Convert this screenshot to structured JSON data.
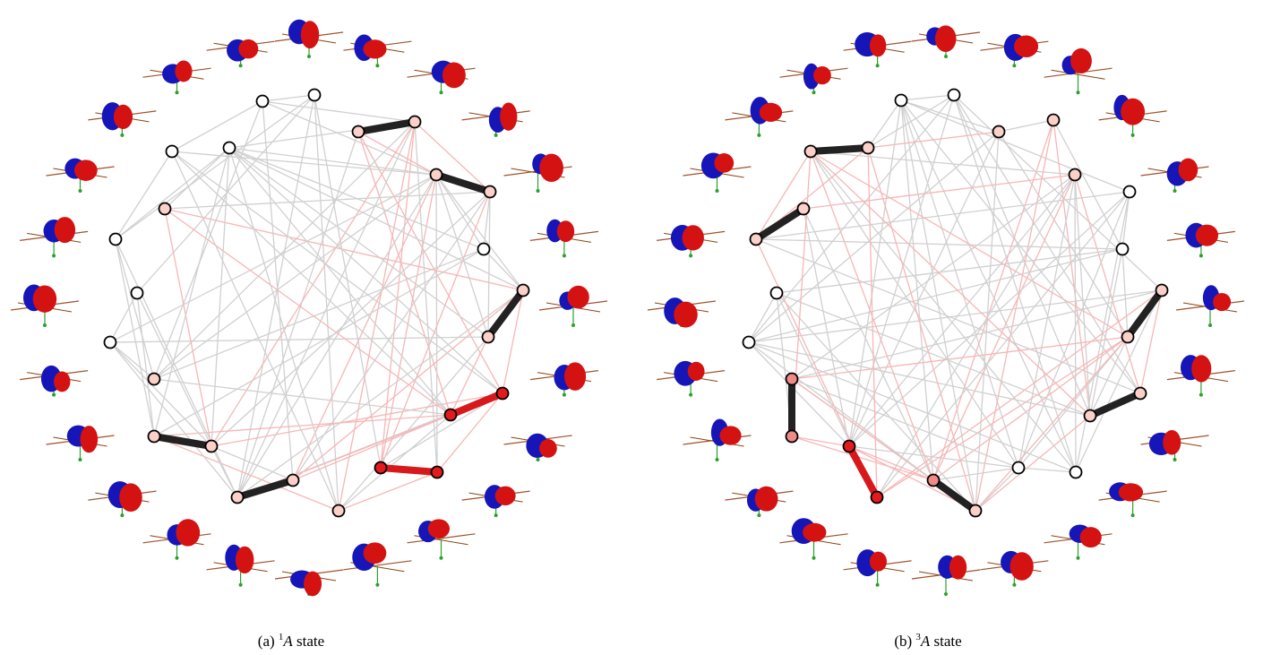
{
  "captions": [
    {
      "label": "(a)",
      "superscript": "1",
      "symbol": "A",
      "text": "state"
    },
    {
      "label": "(b)",
      "superscript": "3",
      "symbol": "A",
      "text": "state"
    }
  ]
}
